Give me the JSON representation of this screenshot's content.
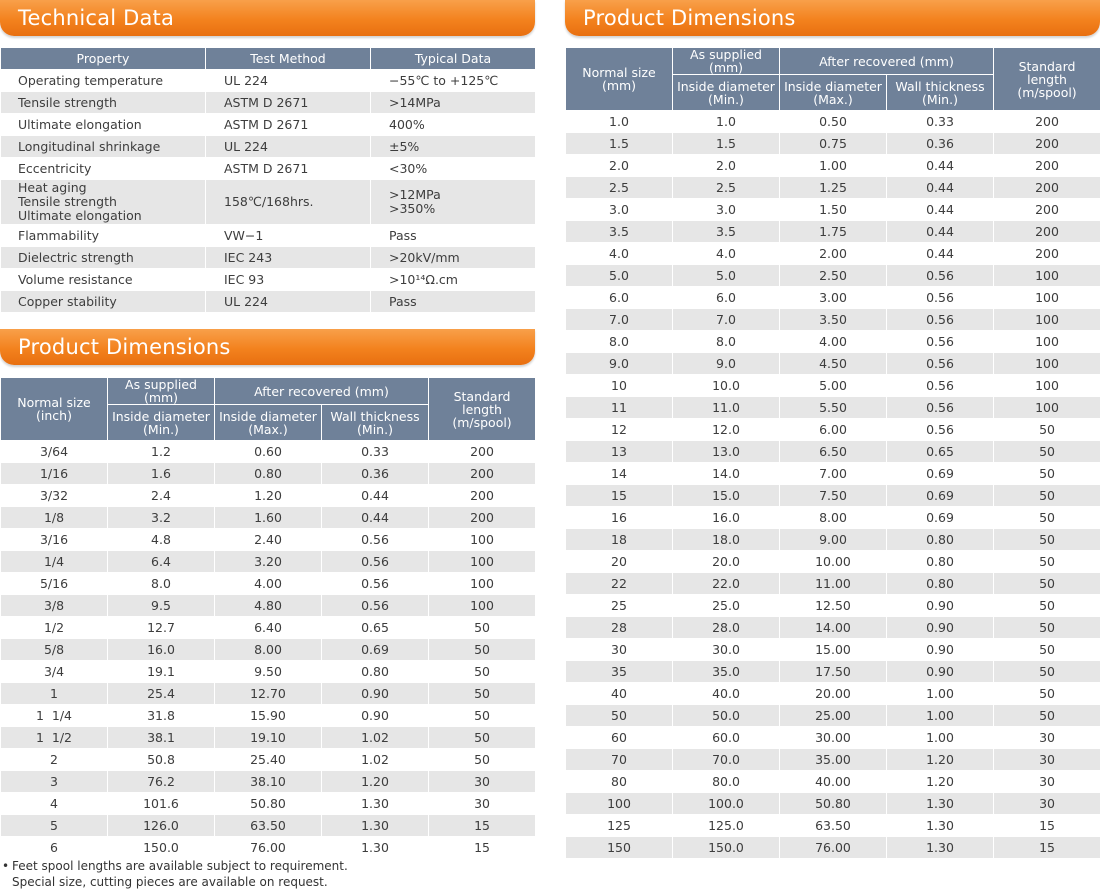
{
  "technical_data": {
    "title": "Technical Data",
    "columns": [
      "Property",
      "Test Method",
      "Typical Data"
    ],
    "rows": [
      {
        "property": "Operating temperature",
        "method": "UL 224",
        "value": "−55℃ to +125℃"
      },
      {
        "property": "Tensile strength",
        "method": "ASTM D 2671",
        "value": ">14MPa"
      },
      {
        "property": "Ultimate elongation",
        "method": "ASTM D 2671",
        "value": "400%"
      },
      {
        "property": "Longitudinal shrinkage",
        "method": "UL 224",
        "value": "±5%"
      },
      {
        "property": "Eccentricity",
        "method": "ASTM D 2671",
        "value": "<30%"
      },
      {
        "property": "Heat aging\nTensile strength\nUltimate elongation",
        "method": "158℃/168hrs.",
        "value": ">12MPa\n>350%"
      },
      {
        "property": "Flammability",
        "method": "VW−1",
        "value": "Pass"
      },
      {
        "property": "Dielectric strength",
        "method": "IEC 243",
        "value": ">20kV/mm"
      },
      {
        "property": "Volume resistance",
        "method": "IEC 93",
        "value": ">10¹⁴Ω.cm"
      },
      {
        "property": "Copper stability",
        "method": "UL 224",
        "value": "Pass"
      }
    ]
  },
  "dimensions_inch": {
    "title": "Product Dimensions",
    "headers": {
      "normal_size": "Normal size\n(inch)",
      "as_supplied": "As supplied (mm)",
      "after_recovered": "After recovered (mm)",
      "inside_min": "Inside diameter\n(Min.)",
      "inside_max": "Inside diameter\n(Max.)",
      "wall_min": "Wall thickness\n(Min.)",
      "standard_length": "Standard\nlength\n(m/spool)"
    },
    "rows": [
      [
        "3/64",
        "1.2",
        "0.60",
        "0.33",
        "200"
      ],
      [
        "1/16",
        "1.6",
        "0.80",
        "0.36",
        "200"
      ],
      [
        "3/32",
        "2.4",
        "1.20",
        "0.44",
        "200"
      ],
      [
        "1/8",
        "3.2",
        "1.60",
        "0.44",
        "200"
      ],
      [
        "3/16",
        "4.8",
        "2.40",
        "0.56",
        "100"
      ],
      [
        "1/4",
        "6.4",
        "3.20",
        "0.56",
        "100"
      ],
      [
        "5/16",
        "8.0",
        "4.00",
        "0.56",
        "100"
      ],
      [
        "3/8",
        "9.5",
        "4.80",
        "0.56",
        "100"
      ],
      [
        "1/2",
        "12.7",
        "6.40",
        "0.65",
        "50"
      ],
      [
        "5/8",
        "16.0",
        "8.00",
        "0.69",
        "50"
      ],
      [
        "3/4",
        "19.1",
        "9.50",
        "0.80",
        "50"
      ],
      [
        "1",
        "25.4",
        "12.70",
        "0.90",
        "50"
      ],
      [
        "1  1/4",
        "31.8",
        "15.90",
        "0.90",
        "50"
      ],
      [
        "1  1/2",
        "38.1",
        "19.10",
        "1.02",
        "50"
      ],
      [
        "2",
        "50.8",
        "25.40",
        "1.02",
        "50"
      ],
      [
        "3",
        "76.2",
        "38.10",
        "1.20",
        "30"
      ],
      [
        "4",
        "101.6",
        "50.80",
        "1.30",
        "30"
      ],
      [
        "5",
        "126.0",
        "63.50",
        "1.30",
        "15"
      ],
      [
        "6",
        "150.0",
        "76.00",
        "1.30",
        "15"
      ]
    ]
  },
  "dimensions_mm": {
    "title": "Product Dimensions",
    "headers": {
      "normal_size": "Normal size\n(mm)",
      "as_supplied": "As supplied (mm)",
      "after_recovered": "After recovered (mm)",
      "inside_min": "Inside diameter\n(Min.)",
      "inside_max": "Inside diameter\n(Max.)",
      "wall_min": "Wall thickness\n(Min.)",
      "standard_length": "Standard\nlength\n(m/spool)"
    },
    "rows": [
      [
        "1.0",
        "1.0",
        "0.50",
        "0.33",
        "200"
      ],
      [
        "1.5",
        "1.5",
        "0.75",
        "0.36",
        "200"
      ],
      [
        "2.0",
        "2.0",
        "1.00",
        "0.44",
        "200"
      ],
      [
        "2.5",
        "2.5",
        "1.25",
        "0.44",
        "200"
      ],
      [
        "3.0",
        "3.0",
        "1.50",
        "0.44",
        "200"
      ],
      [
        "3.5",
        "3.5",
        "1.75",
        "0.44",
        "200"
      ],
      [
        "4.0",
        "4.0",
        "2.00",
        "0.44",
        "200"
      ],
      [
        "5.0",
        "5.0",
        "2.50",
        "0.56",
        "100"
      ],
      [
        "6.0",
        "6.0",
        "3.00",
        "0.56",
        "100"
      ],
      [
        "7.0",
        "7.0",
        "3.50",
        "0.56",
        "100"
      ],
      [
        "8.0",
        "8.0",
        "4.00",
        "0.56",
        "100"
      ],
      [
        "9.0",
        "9.0",
        "4.50",
        "0.56",
        "100"
      ],
      [
        "10",
        "10.0",
        "5.00",
        "0.56",
        "100"
      ],
      [
        "11",
        "11.0",
        "5.50",
        "0.56",
        "100"
      ],
      [
        "12",
        "12.0",
        "6.00",
        "0.56",
        "50"
      ],
      [
        "13",
        "13.0",
        "6.50",
        "0.65",
        "50"
      ],
      [
        "14",
        "14.0",
        "7.00",
        "0.69",
        "50"
      ],
      [
        "15",
        "15.0",
        "7.50",
        "0.69",
        "50"
      ],
      [
        "16",
        "16.0",
        "8.00",
        "0.69",
        "50"
      ],
      [
        "18",
        "18.0",
        "9.00",
        "0.80",
        "50"
      ],
      [
        "20",
        "20.0",
        "10.00",
        "0.80",
        "50"
      ],
      [
        "22",
        "22.0",
        "11.00",
        "0.80",
        "50"
      ],
      [
        "25",
        "25.0",
        "12.50",
        "0.90",
        "50"
      ],
      [
        "28",
        "28.0",
        "14.00",
        "0.90",
        "50"
      ],
      [
        "30",
        "30.0",
        "15.00",
        "0.90",
        "50"
      ],
      [
        "35",
        "35.0",
        "17.50",
        "0.90",
        "50"
      ],
      [
        "40",
        "40.0",
        "20.00",
        "1.00",
        "50"
      ],
      [
        "50",
        "50.0",
        "25.00",
        "1.00",
        "50"
      ],
      [
        "60",
        "60.0",
        "30.00",
        "1.00",
        "30"
      ],
      [
        "70",
        "70.0",
        "35.00",
        "1.20",
        "30"
      ],
      [
        "80",
        "80.0",
        "40.00",
        "1.20",
        "30"
      ],
      [
        "100",
        "100.0",
        "50.80",
        "1.30",
        "30"
      ],
      [
        "125",
        "125.0",
        "63.50",
        "1.30",
        "15"
      ],
      [
        "150",
        "150.0",
        "76.00",
        "1.30",
        "15"
      ]
    ]
  },
  "footnote": {
    "bullet": "•",
    "line1": "Feet spool lengths are available subject to requirement.",
    "line2": "Special size, cutting  pieces are available on request."
  }
}
